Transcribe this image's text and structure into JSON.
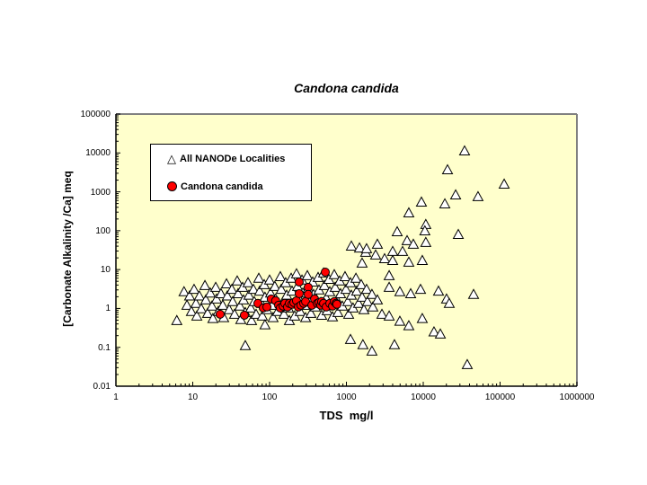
{
  "window": {
    "background": "#FFFFFF"
  },
  "chart_data": {
    "type": "scatter",
    "title": "Candona candida",
    "xlabel": "TDS  mg/l",
    "ylabel": "[Carbonate Alkalinity /Ca] meq",
    "x_scale": "log",
    "y_scale": "log",
    "xlim": [
      1,
      1000000
    ],
    "ylim": [
      0.01,
      100000
    ],
    "x_ticks": [
      "1",
      "10",
      "100",
      "1000",
      "10000",
      "100000",
      "1000000"
    ],
    "y_ticks": [
      "100000",
      "10000",
      "1000",
      "100",
      "10",
      "1",
      "0.1",
      "0.01"
    ],
    "grid": "off",
    "plot_bg_color": "#FFFFCC",
    "plot_border_color": "#808080",
    "axis_color": "#000000",
    "legend": {
      "position": "upper-left-inside",
      "entries": [
        {
          "label": "All NANODe Localities",
          "marker": "open-triangle",
          "marker_fill": "#FFFFFF",
          "marker_stroke": "#000000"
        },
        {
          "label": "Candona candida",
          "marker": "filled-circle",
          "marker_fill": "#FF0000",
          "marker_stroke": "#000000"
        }
      ]
    },
    "series": [
      {
        "name": "All NANODe Localities",
        "marker": "open-triangle",
        "fill": "#FFFFFF",
        "stroke": "#000000",
        "points": [
          [
            7.7,
            2.7
          ],
          [
            8.4,
            1.21
          ],
          [
            9.1,
            2.1
          ],
          [
            9.6,
            0.84
          ],
          [
            10.4,
            3.1
          ],
          [
            11,
            1.35
          ],
          [
            11.3,
            0.64
          ],
          [
            12.2,
            2.1
          ],
          [
            12.9,
            0.98
          ],
          [
            14.4,
            3.9
          ],
          [
            14.8,
            1.66
          ],
          [
            15.6,
            0.75
          ],
          [
            16.9,
            2.5
          ],
          [
            17.8,
            1.15
          ],
          [
            18.3,
            0.55
          ],
          [
            19.9,
            3.5
          ],
          [
            20.4,
            1.75
          ],
          [
            21.5,
            0.84
          ],
          [
            23.3,
            2.4
          ],
          [
            24.6,
            1.21
          ],
          [
            25.3,
            0.58
          ],
          [
            27.5,
            4.3
          ],
          [
            28.2,
            2.1
          ],
          [
            29.8,
            0.93
          ],
          [
            32.3,
            3.1
          ],
          [
            33.1,
            1.5
          ],
          [
            35,
            0.71
          ],
          [
            37.9,
            5.1
          ],
          [
            38.9,
            2.4
          ],
          [
            41.1,
            1.15
          ],
          [
            42.2,
            0.52
          ],
          [
            44.6,
            3.5
          ],
          [
            45.8,
            1.66
          ],
          [
            48.3,
            0.79
          ],
          [
            52.4,
            4.6
          ],
          [
            53.8,
            2.2
          ],
          [
            56.8,
            1.03
          ],
          [
            58.3,
            0.49
          ],
          [
            61.6,
            3.1
          ],
          [
            63.2,
            1.5
          ],
          [
            66.8,
            0.71
          ],
          [
            72.4,
            6
          ],
          [
            74.3,
            2.8
          ],
          [
            78.5,
            1.35
          ],
          [
            80.5,
            0.64
          ],
          [
            85.1,
            4.1
          ],
          [
            87.1,
            1.95
          ],
          [
            92.3,
            0.93
          ],
          [
            100,
            5.4
          ],
          [
            103,
            2.5
          ],
          [
            108,
            1.21
          ],
          [
            111,
            0.58
          ],
          [
            117,
            3.7
          ],
          [
            120,
            1.75
          ],
          [
            127,
            0.84
          ],
          [
            138,
            6.6
          ],
          [
            142,
            3.1
          ],
          [
            150,
            1.5
          ],
          [
            154,
            0.71
          ],
          [
            162,
            4.6
          ],
          [
            167,
            2.2
          ],
          [
            176,
            1.03
          ],
          [
            181,
            0.49
          ],
          [
            191,
            6
          ],
          [
            196,
            2.8
          ],
          [
            207,
            1.35
          ],
          [
            212,
            0.64
          ],
          [
            224,
            7.8
          ],
          [
            231,
            3.7
          ],
          [
            243,
            1.75
          ],
          [
            250,
            0.84
          ],
          [
            264,
            5.4
          ],
          [
            271,
            2.5
          ],
          [
            286,
            1.21
          ],
          [
            294,
            0.58
          ],
          [
            310,
            7
          ],
          [
            318,
            3.3
          ],
          [
            336,
            1.58
          ],
          [
            345,
            0.75
          ],
          [
            364,
            4.8
          ],
          [
            374,
            2.3
          ],
          [
            394,
            1.09
          ],
          [
            428,
            6.3
          ],
          [
            440,
            3
          ],
          [
            464,
            1.42
          ],
          [
            476,
            0.67
          ],
          [
            504,
            8.2
          ],
          [
            517,
            3.9
          ],
          [
            546,
            1.85
          ],
          [
            561,
            0.88
          ],
          [
            592,
            5.6
          ],
          [
            608,
            2.7
          ],
          [
            641,
            1.28
          ],
          [
            659,
            0.61
          ],
          [
            695,
            7.4
          ],
          [
            714,
            3.5
          ],
          [
            753,
            1.66
          ],
          [
            774,
            0.79
          ],
          [
            817,
            5.1
          ],
          [
            839,
            2.4
          ],
          [
            885,
            1.15
          ],
          [
            959,
            6.6
          ],
          [
            986,
            3.1
          ],
          [
            1040,
            1.5
          ],
          [
            1070,
            0.71
          ],
          [
            1130,
            4.6
          ],
          [
            1160,
            2.2
          ],
          [
            1220,
            1.03
          ],
          [
            1330,
            6
          ],
          [
            1360,
            2.8
          ],
          [
            1440,
            1.35
          ],
          [
            1560,
            4.1
          ],
          [
            1600,
            1.95
          ],
          [
            1690,
            0.93
          ],
          [
            1830,
            3.1
          ],
          [
            1880,
            1.5
          ],
          [
            2150,
            2.3
          ],
          [
            2210,
            1.09
          ],
          [
            2530,
            1.66
          ],
          [
            6.2,
            0.49
          ],
          [
            48.3,
            0.111
          ],
          [
            87.1,
            0.38
          ],
          [
            1130,
            0.16
          ],
          [
            1640,
            0.117
          ],
          [
            2150,
            0.08
          ],
          [
            4220,
            0.117
          ],
          [
            37400,
            0.036
          ],
          [
            1780,
            27.8
          ],
          [
            2400,
            23.7
          ],
          [
            3140,
            19.1
          ],
          [
            4000,
            17.2
          ],
          [
            1600,
            14.7
          ],
          [
            1160,
            40.3
          ],
          [
            1480,
            36
          ],
          [
            1830,
            34.4
          ],
          [
            3600,
            7
          ],
          [
            3600,
            3.5
          ],
          [
            4960,
            2.7
          ],
          [
            6860,
            2.4
          ],
          [
            9220,
            3.1
          ],
          [
            15800,
            2.8
          ],
          [
            20100,
            1.75
          ],
          [
            2900,
            0.71
          ],
          [
            3600,
            0.64
          ],
          [
            4960,
            0.47
          ],
          [
            6490,
            0.36
          ],
          [
            9720,
            0.55
          ],
          [
            13800,
            0.25
          ],
          [
            16700,
            0.22
          ],
          [
            21800,
            1.35
          ],
          [
            45200,
            2.3
          ],
          [
            6490,
            15.5
          ],
          [
            9720,
            17.2
          ],
          [
            6160,
            55.5
          ],
          [
            4580,
            94
          ],
          [
            4000,
            29.3
          ],
          [
            2530,
            44.9
          ],
          [
            34500,
            11300
          ],
          [
            20700,
            3700
          ],
          [
            113000,
            1580
          ],
          [
            26400,
            835
          ],
          [
            51600,
            752
          ],
          [
            9470,
            546
          ],
          [
            19100,
            491
          ],
          [
            6490,
            288
          ],
          [
            10800,
            145
          ],
          [
            10500,
            99
          ],
          [
            28600,
            80
          ],
          [
            10800,
            50
          ],
          [
            7430,
            45
          ],
          [
            5380,
            29.3
          ]
        ]
      },
      {
        "name": "Candona candida",
        "marker": "filled-circle",
        "fill": "#FF0000",
        "stroke": "#000000",
        "points": [
          [
            22.7,
            0.71
          ],
          [
            47,
            0.67
          ],
          [
            70.5,
            1.35
          ],
          [
            82.8,
            1.03
          ],
          [
            92.3,
            1.09
          ],
          [
            105,
            1.75
          ],
          [
            120,
            1.58
          ],
          [
            131,
            1.21
          ],
          [
            138,
            1.03
          ],
          [
            150,
            1.15
          ],
          [
            158,
            1.35
          ],
          [
            171,
            1.09
          ],
          [
            181,
            1.35
          ],
          [
            196,
            1.28
          ],
          [
            207,
            1.42
          ],
          [
            224,
            1.58
          ],
          [
            237,
            1.09
          ],
          [
            243,
            4.8
          ],
          [
            243,
            2.4
          ],
          [
            256,
            1.21
          ],
          [
            278,
            1.35
          ],
          [
            294,
            1.5
          ],
          [
            318,
            3.5
          ],
          [
            318,
            2.3
          ],
          [
            355,
            1.21
          ],
          [
            385,
            1.75
          ],
          [
            417,
            1.35
          ],
          [
            440,
            1.42
          ],
          [
            464,
            1.21
          ],
          [
            476,
            1.5
          ],
          [
            504,
            1.35
          ],
          [
            531,
            8.6
          ],
          [
            546,
            1.09
          ],
          [
            608,
            1.35
          ],
          [
            659,
            1.15
          ],
          [
            695,
            1.5
          ],
          [
            733,
            1.35
          ],
          [
            753,
            1.28
          ]
        ]
      }
    ]
  }
}
